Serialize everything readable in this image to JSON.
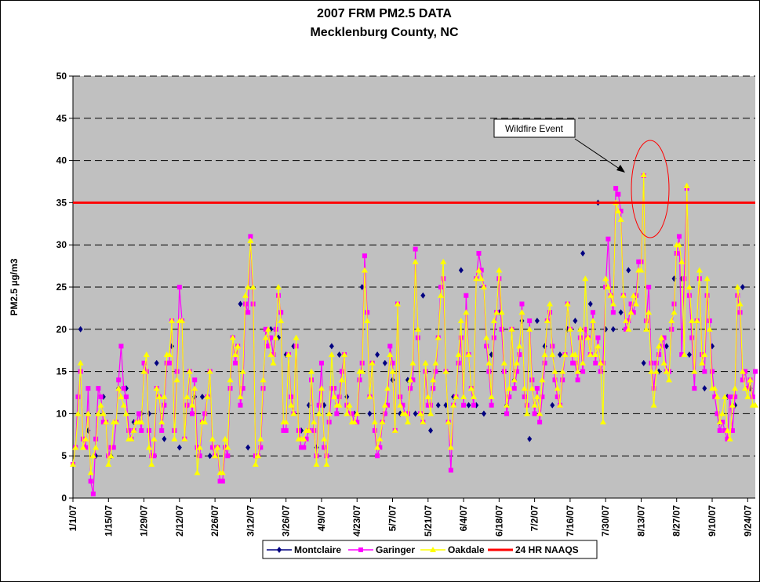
{
  "chart_data": {
    "type": "line",
    "title": "2007 FRM PM2.5 DATA",
    "subtitle": "Mecklenburg County, NC",
    "ylabel": "PM2.5 µg/m3",
    "ylim": [
      0,
      50
    ],
    "yticks": [
      0,
      5,
      10,
      15,
      20,
      25,
      30,
      35,
      40,
      45,
      50
    ],
    "grid": true,
    "legend": "bottom",
    "annotation": "Wildfire Event",
    "reference_line": {
      "name": "24 HR NAAQS",
      "value": 35,
      "color": "#ff0000"
    },
    "categories": [
      "1/1/07",
      null,
      null,
      null,
      null,
      null,
      null,
      null,
      null,
      null,
      null,
      null,
      null,
      null,
      "1/15/07",
      null,
      null,
      null,
      null,
      null,
      null,
      null,
      null,
      null,
      null,
      null,
      null,
      null,
      "1/29/07",
      null,
      null,
      null,
      null,
      null,
      null,
      null,
      null,
      null,
      null,
      null,
      null,
      null,
      "2/12/07",
      null,
      null,
      null,
      null,
      null,
      null,
      null,
      null,
      null,
      null,
      null,
      null,
      null,
      "2/26/07",
      null,
      null,
      null,
      null,
      null,
      null,
      null,
      null,
      null,
      null,
      null,
      null,
      null,
      "3/12/07",
      null,
      null,
      null,
      null,
      null,
      null,
      null,
      null,
      null,
      null,
      null,
      null,
      null,
      "3/26/07",
      null,
      null,
      null,
      null,
      null,
      null,
      null,
      null,
      null,
      null,
      null,
      null,
      null,
      "4/9/07",
      null,
      null,
      null,
      null,
      null,
      null,
      null,
      null,
      null,
      null,
      null,
      null,
      null,
      "4/23/07",
      null,
      null,
      null,
      null,
      null,
      null,
      null,
      null,
      null,
      null,
      null,
      null,
      null,
      "5/7/07",
      null,
      null,
      null,
      null,
      null,
      null,
      null,
      null,
      null,
      null,
      null,
      null,
      null,
      "5/21/07",
      null,
      null,
      null,
      null,
      null,
      null,
      null,
      null,
      null,
      null,
      null,
      null,
      null,
      "6/4/07",
      null,
      null,
      null,
      null,
      null,
      null,
      null,
      null,
      null,
      null,
      null,
      null,
      null,
      "6/18/07",
      null,
      null,
      null,
      null,
      null,
      null,
      null,
      null,
      null,
      null,
      null,
      null,
      null,
      "7/2/07",
      null,
      null,
      null,
      null,
      null,
      null,
      null,
      null,
      null,
      null,
      null,
      null,
      null,
      "7/16/07",
      null,
      null,
      null,
      null,
      null,
      null,
      null,
      null,
      null,
      null,
      null,
      null,
      null,
      "7/30/07",
      null,
      null,
      null,
      null,
      null,
      null,
      null,
      null,
      null,
      null,
      null,
      null,
      null,
      "8/13/07",
      null,
      null,
      null,
      null,
      null,
      null,
      null,
      null,
      null,
      null,
      null,
      null,
      null,
      "8/27/07",
      null,
      null,
      null,
      null,
      null,
      null,
      null,
      null,
      null,
      null,
      null,
      null,
      null,
      "9/10/07",
      null,
      null,
      null,
      null,
      null,
      null,
      null,
      null,
      null,
      null,
      null,
      null,
      null,
      "9/24/07",
      null,
      null,
      null
    ],
    "series": [
      {
        "name": "Montclaire",
        "color": "#000080",
        "marker": "diamond",
        "values": [
          4,
          null,
          null,
          20,
          null,
          null,
          8,
          null,
          null,
          5,
          null,
          null,
          12,
          null,
          null,
          5,
          null,
          null,
          13,
          null,
          null,
          13,
          null,
          null,
          9,
          null,
          null,
          10,
          null,
          null,
          10,
          null,
          null,
          16,
          null,
          null,
          7,
          null,
          null,
          18,
          null,
          null,
          6,
          null,
          null,
          11,
          null,
          null,
          12,
          null,
          null,
          12,
          null,
          null,
          5,
          null,
          null,
          6,
          null,
          null,
          6,
          null,
          null,
          19,
          null,
          null,
          23,
          null,
          null,
          6,
          null,
          null,
          5,
          null,
          null,
          13,
          null,
          null,
          20,
          null,
          null,
          19,
          null,
          null,
          17,
          null,
          null,
          18,
          null,
          null,
          8,
          null,
          null,
          11,
          null,
          null,
          6,
          null,
          null,
          11,
          null,
          null,
          18,
          null,
          null,
          17,
          null,
          null,
          12,
          null,
          null,
          10,
          null,
          null,
          25,
          null,
          null,
          10,
          null,
          null,
          17,
          null,
          null,
          16,
          null,
          null,
          14,
          null,
          null,
          10,
          null,
          null,
          14,
          null,
          null,
          10,
          null,
          null,
          24,
          null,
          null,
          8,
          null,
          null,
          11,
          null,
          null,
          11,
          null,
          null,
          12,
          null,
          null,
          27,
          null,
          null,
          11,
          null,
          null,
          11,
          null,
          null,
          10,
          null,
          null,
          17,
          null,
          null,
          22,
          null,
          null,
          11,
          null,
          null,
          14,
          null,
          null,
          21,
          null,
          null,
          7,
          null,
          null,
          21,
          null,
          null,
          18,
          null,
          null,
          11,
          null,
          null,
          17,
          null,
          null,
          20,
          null,
          null,
          21,
          null,
          null,
          29,
          null,
          null,
          23,
          null,
          null,
          35,
          null,
          null,
          20,
          null,
          null,
          20,
          null,
          null,
          22,
          null,
          null,
          27,
          null,
          null,
          24,
          null,
          null,
          16,
          null,
          null,
          16,
          null,
          null,
          15,
          null,
          null,
          18,
          null,
          null,
          26,
          null,
          null,
          26,
          null,
          null,
          17,
          null,
          null,
          21,
          null,
          null,
          13,
          null,
          null,
          18,
          null,
          null,
          9,
          null,
          null,
          12,
          null,
          null,
          11,
          null,
          null,
          25,
          null,
          null,
          13,
          null,
          null
        ]
      },
      {
        "name": "Garinger",
        "color": "#ff00ff",
        "marker": "square",
        "values": [
          4,
          6,
          12,
          15,
          7,
          6,
          13,
          2,
          0.5,
          7,
          13,
          12,
          9,
          9,
          5,
          6,
          6,
          9,
          14,
          18,
          13,
          12,
          8,
          7,
          8,
          9,
          10,
          8,
          16,
          15,
          8,
          5,
          5,
          13,
          12,
          8,
          11,
          16,
          16,
          21,
          8,
          15,
          25,
          21,
          7,
          11,
          15,
          10,
          14,
          6,
          5,
          9,
          10,
          12,
          15,
          6,
          5,
          6,
          2,
          2,
          6,
          5,
          13,
          19,
          16,
          18,
          11,
          13,
          23,
          22,
          31,
          23,
          5,
          5,
          6,
          13,
          20,
          18,
          19,
          17,
          20,
          24,
          22,
          8,
          8,
          17,
          12,
          10,
          18,
          8,
          6,
          6,
          7,
          8,
          14,
          8,
          5,
          11,
          16,
          6,
          5,
          9,
          13,
          13,
          10,
          12,
          15,
          17,
          11,
          10,
          10,
          9,
          9,
          14,
          16,
          28.7,
          22,
          12,
          16,
          8,
          5,
          6,
          9,
          10,
          11,
          18,
          16,
          8,
          23,
          12,
          11,
          10,
          10,
          13,
          14,
          29.5,
          19,
          10,
          9,
          15,
          11,
          11,
          13,
          15,
          19,
          25,
          26,
          15,
          9,
          3.3,
          11,
          12,
          16,
          19,
          11,
          24,
          17,
          13,
          11,
          26,
          29,
          27,
          25,
          18,
          15,
          11,
          19,
          22,
          26,
          20,
          15,
          10,
          12,
          20,
          13,
          15,
          17,
          23,
          12,
          11,
          21,
          14,
          10,
          13,
          9,
          12,
          16,
          21,
          22,
          18,
          14,
          12,
          11,
          14,
          17,
          23,
          20,
          16,
          16,
          14,
          19,
          15,
          20,
          19,
          17,
          22,
          16,
          19,
          15,
          16,
          25,
          30.7,
          24,
          22,
          36.7,
          36,
          34,
          24,
          20,
          21,
          23,
          22,
          24,
          28,
          28,
          38.2,
          21,
          25,
          16,
          13,
          16,
          17,
          18,
          19,
          15,
          15,
          20,
          23,
          29,
          31,
          17,
          26,
          36.7,
          24,
          19,
          13,
          21,
          26,
          17,
          15,
          24,
          21,
          15,
          12,
          10,
          8,
          9,
          8,
          7,
          12,
          8,
          12,
          24,
          22,
          14,
          15,
          13,
          14,
          12,
          15
        ]
      },
      {
        "name": "Oakdale",
        "color": "#ffff00",
        "marker": "triangle",
        "values": [
          4,
          6,
          10,
          16,
          6,
          7,
          10,
          3,
          5,
          6,
          10,
          11,
          10,
          9,
          4,
          5,
          9,
          9,
          13,
          12,
          11,
          10,
          7,
          7,
          8,
          9,
          9,
          9,
          15,
          17,
          6,
          4,
          7,
          13,
          12,
          9,
          12,
          17,
          17,
          21,
          7,
          14,
          21,
          21,
          7,
          12,
          15,
          11,
          13,
          3,
          6,
          9,
          9,
          12,
          15,
          7,
          5,
          6,
          3,
          3,
          7,
          6,
          14,
          19,
          17,
          18,
          12,
          15,
          24,
          25,
          30.5,
          25,
          4,
          5,
          7,
          14,
          19,
          20,
          17,
          16,
          19,
          25,
          21,
          9,
          9,
          17,
          11,
          10,
          19,
          7,
          7,
          7,
          8,
          8,
          15,
          9,
          4,
          10,
          13,
          7,
          4,
          10,
          17,
          12,
          11,
          11,
          14,
          17,
          10,
          11,
          9,
          9,
          10,
          15,
          15,
          27,
          21,
          12,
          16,
          9,
          6,
          7,
          9,
          11,
          13,
          17,
          15,
          8,
          23,
          11,
          10,
          10,
          9,
          14,
          16,
          28,
          20,
          10,
          9,
          16,
          12,
          10,
          14,
          16,
          19,
          24,
          28,
          15,
          9,
          6,
          11,
          12,
          17,
          21,
          12,
          22,
          17,
          13,
          12,
          26,
          27,
          26,
          25,
          19,
          16,
          12,
          21,
          22,
          27,
          22,
          16,
          11,
          13,
          20,
          14,
          16,
          18,
          22,
          13,
          10,
          20,
          13,
          11,
          12,
          10,
          14,
          17,
          21,
          23,
          17,
          15,
          13,
          11,
          15,
          17,
          23,
          20,
          17,
          17,
          15,
          20,
          16,
          26,
          19,
          17,
          21,
          17,
          18,
          16,
          9,
          26,
          25,
          24,
          23,
          35,
          34,
          33,
          24,
          21,
          20,
          22,
          24,
          23,
          27,
          27,
          38.3,
          20,
          22,
          15,
          11,
          15,
          18,
          19,
          16,
          15,
          14,
          21,
          22,
          30,
          30,
          28,
          17,
          37,
          25,
          21,
          15,
          21,
          27,
          16,
          17,
          26,
          20,
          13,
          13,
          12,
          9,
          10,
          12,
          8,
          7,
          11,
          13,
          25,
          23,
          15,
          13,
          12,
          14,
          11,
          11
        ]
      }
    ]
  }
}
